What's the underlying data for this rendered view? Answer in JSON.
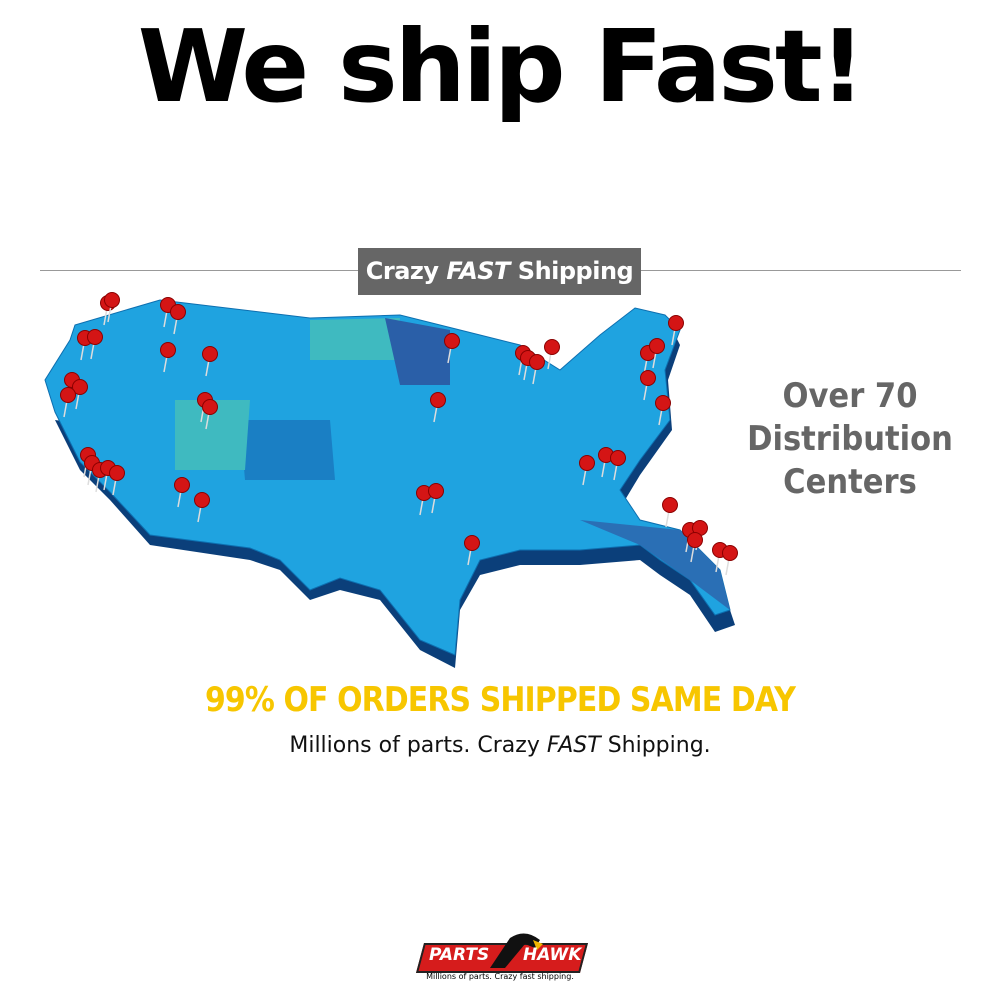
{
  "headline": "We ship Fast!",
  "banner": {
    "prefix": "Crazy",
    "emphasis": "FAST",
    "suffix": "Shipping"
  },
  "side_text": {
    "line1": "Over 70",
    "line2": "Distribution",
    "line3": "Centers"
  },
  "highlight": "99% OF ORDERS SHIPPED SAME DAY",
  "tagline": {
    "prefix": "Millions of parts. Crazy",
    "emphasis": "FAST",
    "suffix": "Shipping."
  },
  "map": {
    "icon": "us-map-with-pins",
    "pin_color": "#d41515",
    "land_color": "#1fa3e0"
  },
  "logo": {
    "word1": "PARTS",
    "word2": "HAWK",
    "slogan": "Millions of parts. Crazy fast shipping."
  },
  "colors": {
    "highlight": "#f7c600",
    "banner_bg": "#666666",
    "side_text": "#666666"
  }
}
